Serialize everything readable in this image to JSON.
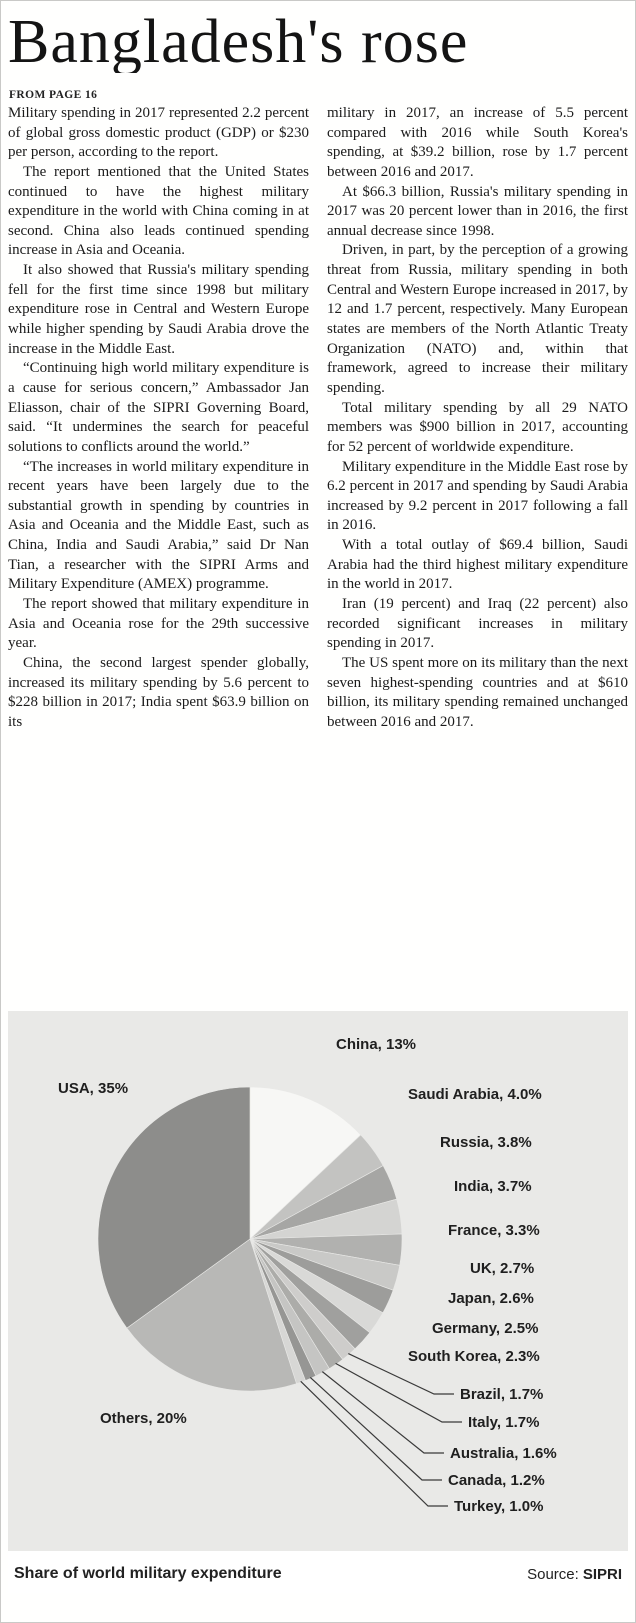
{
  "page": {
    "headline": "Bangladesh's rose",
    "kicker": "FROM PAGE 16"
  },
  "article": {
    "column1": [
      "Military spending in 2017 represented 2.2 percent of global gross domestic product (GDP) or $230 per person, according to the report.",
      "The report mentioned that the United States continued to have the highest military expenditure in the world with China coming in at second. China also leads continued spending increase in Asia and Oceania.",
      "It also showed that Russia's military spending fell for the first time since 1998 but military expenditure rose in Central and Western Europe while higher spending by Saudi Arabia drove the increase in the Middle East.",
      "“Continuing high world military expenditure is a cause for serious concern,” Ambassador Jan Eliasson, chair of the SIPRI Governing Board, said. “It undermines the search for peaceful solutions to conflicts around the world.”",
      "“The increases in world military expenditure in recent years have been largely due to the substantial growth in spending by countries in Asia and Oceania and the Middle East, such as China, India and Saudi Arabia,” said Dr Nan Tian, a researcher with the SIPRI Arms and Military Expenditure (AMEX) programme.",
      "The report showed that military expenditure in Asia and Oceania rose for the 29th successive year.",
      "China, the second largest spender globally, increased its military spending by 5.6 percent to $228 billion in 2017; India spent $63.9 billion on its"
    ],
    "column2": [
      "military in 2017, an increase of 5.5 percent compared with 2016 while South Korea's spending, at $39.2 billion, rose by 1.7 percent between 2016 and 2017.",
      "At $66.3 billion, Russia's military spending in 2017 was 20 percent lower than in 2016, the first annual decrease since 1998.",
      "Driven, in part, by the perception of a growing threat from Russia, military spending in both Central and Western Europe increased in 2017, by 12 and 1.7 percent, respectively. Many European states are members of the North Atlantic Treaty Organization (NATO) and, within that framework, agreed to increase their military spending.",
      "Total military spending by all 29 NATO members was $900 billion in 2017, accounting for 52 percent of worldwide expenditure.",
      "Military expenditure in the Middle East rose by 6.2 percent in 2017 and spending by Saudi Arabia increased by 9.2 percent in 2017 following a fall in 2016.",
      "With a total outlay of $69.4 billion, Saudi Arabia had the third highest military expenditure in the world in 2017.",
      "Iran (19 percent) and Iraq (22 percent) also recorded significant increases in military spending in 2017.",
      "The US spent more on its military than the next seven highest-spending countries and at $610 billion, its military spending remained unchanged between 2016 and 2017."
    ]
  },
  "chart": {
    "caption": "Share of world military expenditure",
    "source_prefix": "Source:",
    "source": "SIPRI",
    "background": "#e9e9e7"
  },
  "chart_data": {
    "type": "pie",
    "title": "Share of world military expenditure",
    "source": "SIPRI",
    "layout": "slices clockwise from 12 o'clock; legend labels placed around pie",
    "slices": [
      {
        "id": "china",
        "label": "China",
        "value": 13,
        "display": "China, 13%",
        "color": "#f7f7f5"
      },
      {
        "id": "saudi-arabia",
        "label": "Saudi Arabia",
        "value": 4.0,
        "display": "Saudi Arabia, 4.0%",
        "color": "#c3c3c1"
      },
      {
        "id": "russia",
        "label": "Russia",
        "value": 3.8,
        "display": "Russia, 3.8%",
        "color": "#a6a6a4"
      },
      {
        "id": "india",
        "label": "India",
        "value": 3.7,
        "display": "India, 3.7%",
        "color": "#d4d4d2"
      },
      {
        "id": "france",
        "label": "France",
        "value": 3.3,
        "display": "France, 3.3%",
        "color": "#b1b1af"
      },
      {
        "id": "uk",
        "label": "UK",
        "value": 2.7,
        "display": "UK, 2.7%",
        "color": "#c9c9c7"
      },
      {
        "id": "japan",
        "label": "Japan",
        "value": 2.6,
        "display": "Japan, 2.6%",
        "color": "#9d9d9b"
      },
      {
        "id": "germany",
        "label": "Germany",
        "value": 2.5,
        "display": "Germany, 2.5%",
        "color": "#d9d9d7"
      },
      {
        "id": "south-korea",
        "label": "South Korea",
        "value": 2.3,
        "display": "South Korea, 2.3%",
        "color": "#a0a09e"
      },
      {
        "id": "brazil",
        "label": "Brazil",
        "value": 1.7,
        "display": "Brazil, 1.7%",
        "color": "#cecdcb",
        "leader": true
      },
      {
        "id": "italy",
        "label": "Italy",
        "value": 1.7,
        "display": "Italy, 1.7%",
        "color": "#acaca9",
        "leader": true
      },
      {
        "id": "australia",
        "label": "Australia",
        "value": 1.6,
        "display": "Australia, 1.6%",
        "color": "#c5c5c3",
        "leader": true
      },
      {
        "id": "canada",
        "label": "Canada",
        "value": 1.2,
        "display": "Canada, 1.2%",
        "color": "#969694",
        "leader": true
      },
      {
        "id": "turkey",
        "label": "Turkey",
        "value": 1.0,
        "display": "Turkey, 1.0%",
        "color": "#d7d7d5",
        "leader": true
      },
      {
        "id": "others",
        "label": "Others",
        "value": 20,
        "display": "Others, 20%",
        "color": "#b8b8b6"
      },
      {
        "id": "usa",
        "label": "USA",
        "value": 35,
        "display": "USA, 35%",
        "color": "#8d8d8b"
      }
    ]
  }
}
